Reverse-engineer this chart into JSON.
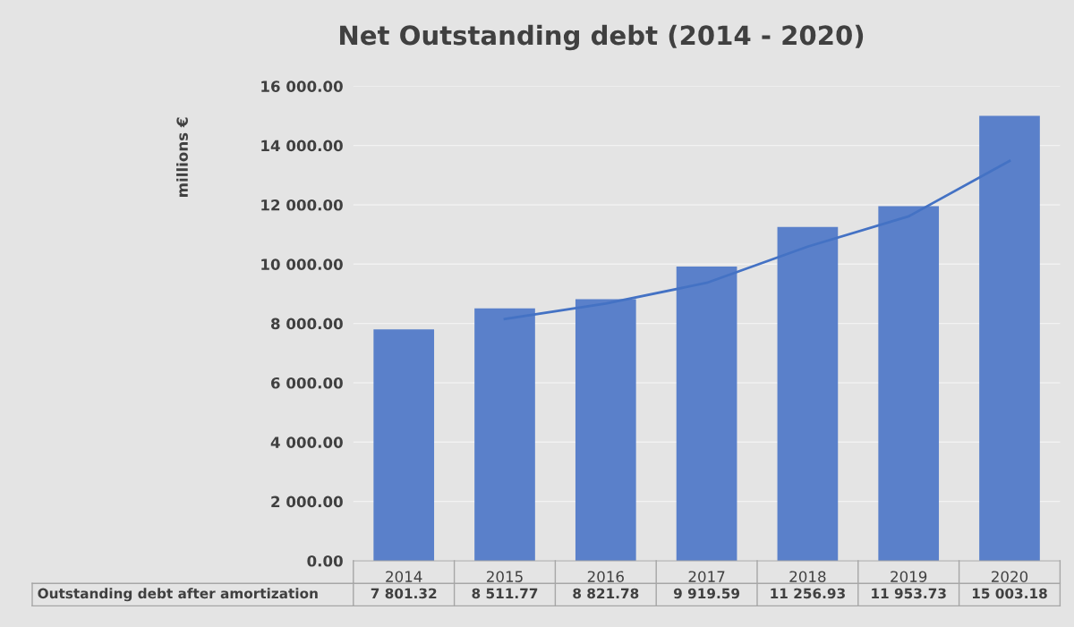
{
  "chart_data": {
    "type": "bar",
    "title": "Net Outstanding debt (2014 - 2020)",
    "ylabel": "millions €",
    "categories": [
      "2014",
      "2015",
      "2016",
      "2017",
      "2018",
      "2019",
      "2020"
    ],
    "series": [
      {
        "name": "Outstanding debt after amortization",
        "color": "#5a80ca",
        "values": [
          7801.32,
          8511.77,
          8821.78,
          9919.59,
          11256.93,
          11953.73,
          15003.18
        ],
        "value_labels": [
          "7 801.32",
          "8 511.77",
          "8 821.78",
          "9 919.59",
          "11 256.93",
          "11 953.73",
          "15 003.18"
        ]
      },
      {
        "type": "line",
        "color": "#4472c4",
        "values": [
          null,
          8150,
          8670,
          9370,
          10590,
          11610,
          13480
        ]
      }
    ],
    "ylim": [
      0,
      16000
    ],
    "yticks": [
      {
        "value": 0,
        "label": "0.00"
      },
      {
        "value": 2000,
        "label": "2 000.00"
      },
      {
        "value": 4000,
        "label": "4 000.00"
      },
      {
        "value": 6000,
        "label": "6 000.00"
      },
      {
        "value": 8000,
        "label": "8 000.00"
      },
      {
        "value": 10000,
        "label": "10 000.00"
      },
      {
        "value": 12000,
        "label": "12 000.00"
      },
      {
        "value": 14000,
        "label": "14 000.00"
      },
      {
        "value": 16000,
        "label": "16 000.00"
      }
    ],
    "grid": "y",
    "legend": false,
    "marker": "none",
    "line_style": "solid"
  }
}
